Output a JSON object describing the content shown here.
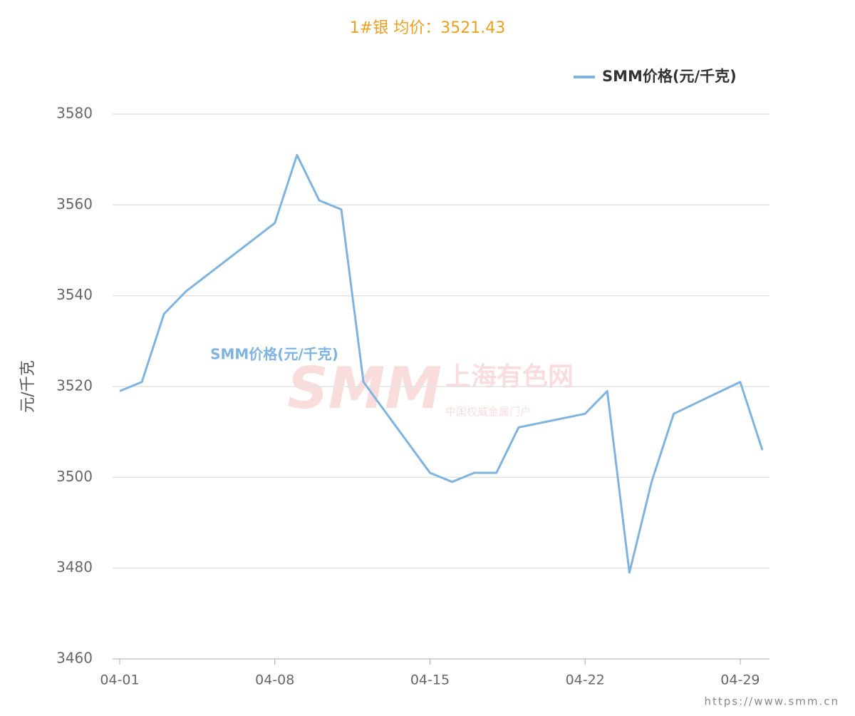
{
  "chart_data": {
    "type": "line",
    "title": "1#银 均价：3521.43",
    "y_label": "元/千克",
    "x": [
      "04-01",
      "04-02",
      "04-03",
      "04-04",
      "04-08",
      "04-09",
      "04-10",
      "04-11",
      "04-12",
      "04-15",
      "04-16",
      "04-17",
      "04-18",
      "04-19",
      "04-22",
      "04-23",
      "04-24",
      "04-25",
      "04-26",
      "04-29",
      "04-30"
    ],
    "series": [
      {
        "name": "SMM价格(元/千克)",
        "color": "#7fb3e0",
        "values": [
          3519,
          3521,
          3536,
          3541,
          3556,
          3571,
          3561,
          3559,
          3521,
          3501,
          3499,
          3501,
          3501,
          3511,
          3514,
          3519,
          3479,
          3499,
          3514,
          3521,
          3506
        ]
      }
    ],
    "xlim": [
      "04-01",
      "04-30"
    ],
    "xticks": [
      "04-01",
      "04-08",
      "04-15",
      "04-22",
      "04-29"
    ],
    "ylim": [
      3460,
      3580
    ],
    "yticks": [
      3460,
      3480,
      3500,
      3520,
      3540,
      3560,
      3580
    ],
    "grid": true,
    "legend": "top-right",
    "watermark": [
      "SMM",
      "上海有色网",
      "中国权威金属门户"
    ],
    "footer": "https://www.smm.cn"
  }
}
